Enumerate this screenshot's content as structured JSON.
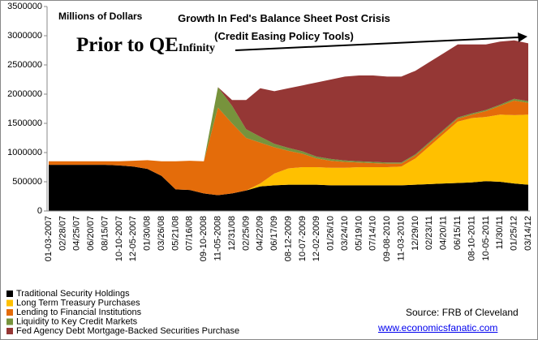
{
  "chart_data": {
    "type": "stacked_area",
    "title": "Growth In Fed's Balance Sheet Post Crisis (Credit Easing Policy Tools)",
    "y_axis_label": "Millions of Dollars",
    "annotation": {
      "text": "Prior to QE",
      "subscript": "Infinity"
    },
    "source": "Source: FRB of Cleveland",
    "website": "www.economicsfanatic.com",
    "categories": [
      "01-03-2007",
      "02/28/07",
      "04/25/07",
      "06/20/07",
      "08/15/07",
      "10-10-2007",
      "12-05-2007",
      "01/30/08",
      "03/26/08",
      "05/21/08",
      "07/16/08",
      "09-10-2008",
      "11-05-2008",
      "12/31/08",
      "02/25/09",
      "04/22/09",
      "06/17/09",
      "08-12-2009",
      "10-07-2009",
      "12-02-2009",
      "01/26/10",
      "03/24/10",
      "05/19/10",
      "07/14/10",
      "09-08-2010",
      "11-03-2010",
      "12/29/10",
      "02/23/11",
      "04/20/11",
      "06/15/11",
      "08-10-2011",
      "10-05-2011",
      "11/30/11",
      "01/25/12",
      "03/14/12"
    ],
    "series": [
      {
        "name": "Traditional Security Holdings",
        "color": "#000000",
        "values": [
          790000,
          790000,
          790000,
          790000,
          790000,
          780000,
          760000,
          720000,
          600000,
          370000,
          360000,
          300000,
          270000,
          300000,
          350000,
          420000,
          440000,
          450000,
          450000,
          450000,
          440000,
          440000,
          440000,
          440000,
          440000,
          440000,
          450000,
          460000,
          470000,
          480000,
          490000,
          510000,
          500000,
          470000,
          450000
        ]
      },
      {
        "name": "Long Term Treasury Purchases",
        "color": "#ffc000",
        "values": [
          0,
          0,
          0,
          0,
          0,
          0,
          0,
          0,
          0,
          0,
          0,
          0,
          0,
          0,
          0,
          50000,
          200000,
          280000,
          300000,
          300000,
          300000,
          300000,
          310000,
          310000,
          310000,
          320000,
          450000,
          650000,
          850000,
          1050000,
          1100000,
          1100000,
          1150000,
          1170000,
          1200000
        ]
      },
      {
        "name": "Lending to Financial Institutions",
        "color": "#e46c0a",
        "values": [
          60000,
          60000,
          60000,
          60000,
          60000,
          70000,
          100000,
          150000,
          250000,
          480000,
          500000,
          550000,
          1500000,
          1200000,
          900000,
          700000,
          450000,
          300000,
          230000,
          150000,
          120000,
          100000,
          80000,
          70000,
          60000,
          50000,
          50000,
          50000,
          50000,
          50000,
          60000,
          100000,
          150000,
          250000,
          200000
        ]
      },
      {
        "name": "Liquidity to Key Credit Markets",
        "color": "#77933c",
        "values": [
          0,
          0,
          0,
          0,
          0,
          0,
          0,
          0,
          0,
          0,
          0,
          0,
          350000,
          300000,
          150000,
          100000,
          60000,
          50000,
          40000,
          30000,
          30000,
          25000,
          20000,
          20000,
          20000,
          20000,
          20000,
          20000,
          20000,
          20000,
          20000,
          20000,
          20000,
          30000,
          30000
        ]
      },
      {
        "name": "Fed Agency Debt Mortgage-Backed Securities Purchase",
        "color": "#953735",
        "values": [
          0,
          0,
          0,
          0,
          0,
          0,
          0,
          0,
          0,
          0,
          0,
          0,
          0,
          100000,
          500000,
          830000,
          900000,
          1020000,
          1130000,
          1270000,
          1360000,
          1435000,
          1470000,
          1480000,
          1470000,
          1470000,
          1430000,
          1370000,
          1310000,
          1250000,
          1180000,
          1120000,
          1080000,
          1000000,
          990000
        ]
      }
    ],
    "ylim": [
      0,
      3500000
    ],
    "yticks": [
      0,
      500000,
      1000000,
      1500000,
      2000000,
      2500000,
      3000000,
      3500000
    ]
  }
}
